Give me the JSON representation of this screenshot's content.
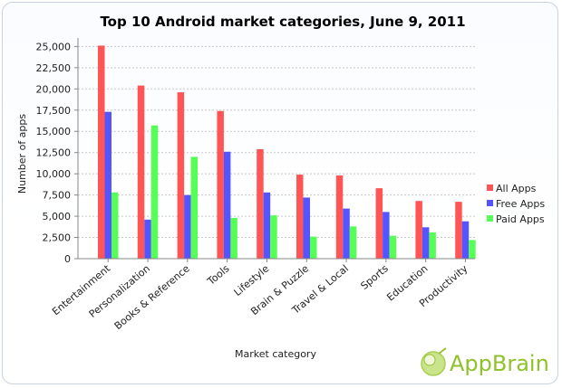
{
  "chart_data": {
    "type": "bar",
    "title": "Top 10 Android market categories, June 9, 2011",
    "xlabel": "Market category",
    "ylabel": "Number of apps",
    "ylim": [
      0,
      26000
    ],
    "yticks": [
      0,
      2500,
      5000,
      7500,
      10000,
      12500,
      15000,
      17500,
      20000,
      22500,
      25000
    ],
    "ytick_labels": [
      "0",
      "2,500",
      "5,000",
      "7,500",
      "10,000",
      "12,500",
      "15,000",
      "17,500",
      "20,000",
      "22,500",
      "25,000"
    ],
    "grid": true,
    "legend_position": "right",
    "categories": [
      "Entertainment",
      "Personalization",
      "Books & Reference",
      "Tools",
      "Lifestyle",
      "Brain & Puzzle",
      "Travel & Local",
      "Sports",
      "Education",
      "Productivity"
    ],
    "series": [
      {
        "name": "All Apps",
        "color": "#ff5555",
        "values": [
          25100,
          20400,
          19600,
          17400,
          12900,
          9900,
          9800,
          8300,
          6800,
          6700
        ]
      },
      {
        "name": "Free Apps",
        "color": "#5555ff",
        "values": [
          17300,
          4600,
          7500,
          12600,
          7800,
          7200,
          5900,
          5500,
          3700,
          4400
        ]
      },
      {
        "name": "Paid Apps",
        "color": "#55ff55",
        "values": [
          7800,
          15700,
          12000,
          4800,
          5100,
          2600,
          3800,
          2700,
          3100,
          2200
        ]
      }
    ]
  },
  "watermark": {
    "text": "AppBrain"
  }
}
